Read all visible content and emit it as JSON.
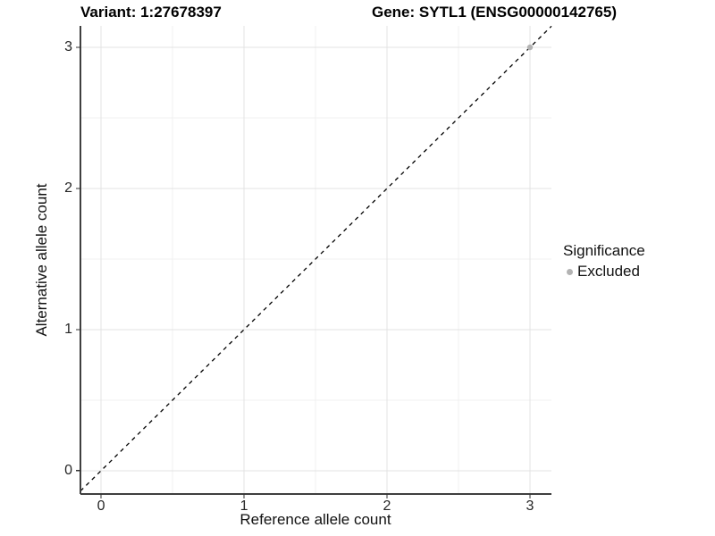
{
  "colors": {
    "background": "#ffffff",
    "grid_major": "#e3e3e3",
    "grid_minor": "#f0f0f0",
    "axis_line": "#3f3f3f",
    "tick_mark": "#333333",
    "tick_text": "#262626",
    "point_excluded": "#b3b3b3",
    "identity_line": "#000000"
  },
  "chart_data": {
    "type": "scatter",
    "title_left": "Variant: 1:27678397",
    "title_right": "Gene: SYTL1 (ENSG00000142765)",
    "xlabel": "Reference allele count",
    "ylabel": "Alternative allele count",
    "xlim": [
      -0.144,
      3.15
    ],
    "ylim": [
      -0.165,
      3.152
    ],
    "x_ticks": [
      0,
      1,
      2,
      3
    ],
    "y_ticks": [
      0,
      1,
      2,
      3
    ],
    "x_minor_ticks": [
      0.5,
      1.5,
      2.5
    ],
    "y_minor_ticks": [
      0.5,
      1.5,
      2.5
    ],
    "grid": "on",
    "legend": {
      "title": "Significance",
      "position": "right",
      "items": [
        {
          "label": "Excluded",
          "color": "#b3b3b3"
        }
      ]
    },
    "series": [
      {
        "name": "Excluded",
        "color": "#b3b3b3",
        "points": [
          {
            "x": 3,
            "y": 3
          }
        ]
      }
    ],
    "identity_line": {
      "style": "dashed",
      "color": "#000000",
      "from": -0.144,
      "to": 3.15
    }
  }
}
